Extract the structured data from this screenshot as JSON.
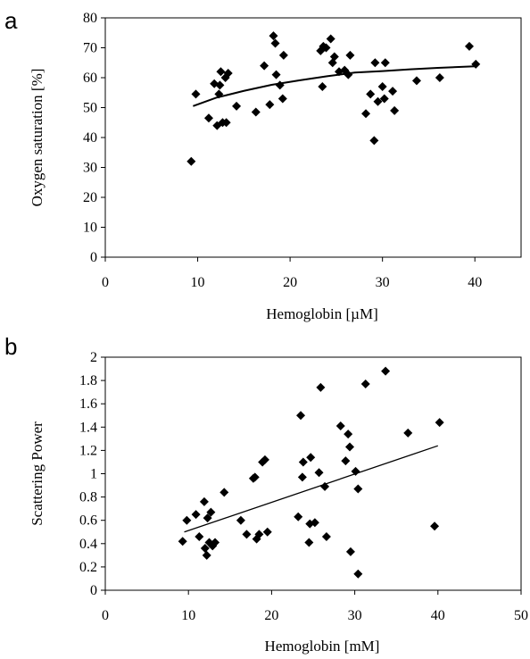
{
  "chart_data": [
    {
      "type": "scatter",
      "panel_label": "a",
      "xlabel": "Hemoglobin  [µM]",
      "ylabel": "Oxygen saturation  [%]",
      "xlim": [
        0,
        45
      ],
      "ylim": [
        0,
        80
      ],
      "xticks": [
        0,
        10,
        20,
        30,
        40
      ],
      "yticks": [
        0,
        10,
        20,
        30,
        40,
        50,
        60,
        70,
        80
      ],
      "grid": false,
      "marker": "diamond",
      "trendline": {
        "kind": "logarithmic",
        "x": [
          9.5,
          12,
          15,
          18,
          21,
          24,
          27,
          30,
          33,
          36,
          40
        ],
        "y": [
          50.5,
          53.3,
          55.6,
          57.6,
          59.1,
          60.5,
          61.7,
          62.2,
          62.8,
          63.3,
          63.8
        ]
      },
      "points": [
        [
          9.3,
          32
        ],
        [
          9.8,
          54.5
        ],
        [
          11.2,
          46.5
        ],
        [
          11.8,
          58
        ],
        [
          12.1,
          44
        ],
        [
          12.3,
          54.5
        ],
        [
          12.4,
          57.5
        ],
        [
          12.5,
          62
        ],
        [
          12.7,
          45
        ],
        [
          13.0,
          60
        ],
        [
          13.1,
          45
        ],
        [
          13.3,
          61.5
        ],
        [
          14.2,
          50.5
        ],
        [
          16.3,
          48.5
        ],
        [
          17.2,
          64
        ],
        [
          17.8,
          51
        ],
        [
          18.2,
          74
        ],
        [
          18.4,
          71.5
        ],
        [
          18.5,
          61
        ],
        [
          18.9,
          57.5
        ],
        [
          19.2,
          53
        ],
        [
          19.3,
          67.5
        ],
        [
          23.3,
          69
        ],
        [
          23.5,
          57
        ],
        [
          23.6,
          70.5
        ],
        [
          23.9,
          70
        ],
        [
          24.4,
          73
        ],
        [
          24.6,
          65
        ],
        [
          24.8,
          67
        ],
        [
          25.3,
          62
        ],
        [
          25.9,
          62.5
        ],
        [
          26.3,
          61
        ],
        [
          26.5,
          67.5
        ],
        [
          28.2,
          48
        ],
        [
          28.7,
          54.5
        ],
        [
          29.1,
          39
        ],
        [
          29.2,
          65
        ],
        [
          29.5,
          52
        ],
        [
          30.0,
          57
        ],
        [
          30.2,
          53
        ],
        [
          30.3,
          65
        ],
        [
          31.1,
          55.5
        ],
        [
          31.3,
          49
        ],
        [
          33.7,
          59
        ],
        [
          36.2,
          60
        ],
        [
          39.4,
          70.5
        ],
        [
          40.1,
          64.5
        ]
      ]
    },
    {
      "type": "scatter",
      "panel_label": "b",
      "xlabel": "Hemoglobin  [mM]",
      "ylabel": "Scattering Power",
      "xlim": [
        0,
        50
      ],
      "ylim": [
        0,
        2
      ],
      "xticks": [
        0,
        10,
        20,
        30,
        40,
        50
      ],
      "yticks": [
        0,
        0.2,
        0.4,
        0.6,
        0.8,
        1,
        1.2,
        1.4,
        1.6,
        1.8,
        2
      ],
      "grid": false,
      "marker": "diamond",
      "trendline": {
        "kind": "linear",
        "x": [
          9.5,
          40
        ],
        "y": [
          0.5,
          1.24
        ]
      },
      "points": [
        [
          9.3,
          0.42
        ],
        [
          9.8,
          0.6
        ],
        [
          10.9,
          0.65
        ],
        [
          11.3,
          0.46
        ],
        [
          11.9,
          0.76
        ],
        [
          12.0,
          0.36
        ],
        [
          12.2,
          0.3
        ],
        [
          12.3,
          0.62
        ],
        [
          12.5,
          0.41
        ],
        [
          12.7,
          0.67
        ],
        [
          12.9,
          0.38
        ],
        [
          13.2,
          0.41
        ],
        [
          14.3,
          0.84
        ],
        [
          16.3,
          0.6
        ],
        [
          17.0,
          0.48
        ],
        [
          17.8,
          0.96
        ],
        [
          18.0,
          0.97
        ],
        [
          18.2,
          0.44
        ],
        [
          18.5,
          0.48
        ],
        [
          18.9,
          1.1
        ],
        [
          19.2,
          1.12
        ],
        [
          19.5,
          0.5
        ],
        [
          23.2,
          0.63
        ],
        [
          23.5,
          1.5
        ],
        [
          23.7,
          0.97
        ],
        [
          23.8,
          1.1
        ],
        [
          24.5,
          0.41
        ],
        [
          24.6,
          0.57
        ],
        [
          24.7,
          1.14
        ],
        [
          25.2,
          0.58
        ],
        [
          25.7,
          1.01
        ],
        [
          25.9,
          1.74
        ],
        [
          26.4,
          0.89
        ],
        [
          26.6,
          0.46
        ],
        [
          28.3,
          1.41
        ],
        [
          28.9,
          1.11
        ],
        [
          29.2,
          1.34
        ],
        [
          29.4,
          1.23
        ],
        [
          29.5,
          0.33
        ],
        [
          30.1,
          1.02
        ],
        [
          30.4,
          0.14
        ],
        [
          30.4,
          0.87
        ],
        [
          31.3,
          1.77
        ],
        [
          33.7,
          1.88
        ],
        [
          36.4,
          1.35
        ],
        [
          39.6,
          0.55
        ],
        [
          40.2,
          1.44
        ]
      ]
    }
  ]
}
